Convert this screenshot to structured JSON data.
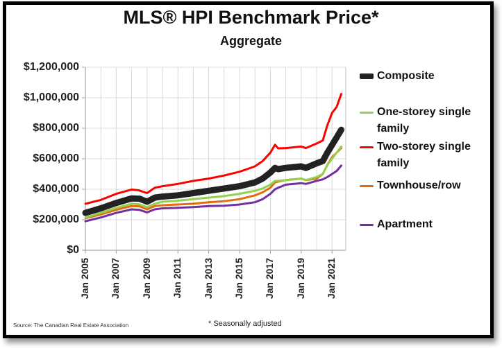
{
  "chart_data": {
    "type": "line",
    "title": "MLS® HPI Benchmark Price*",
    "subtitle": "Aggregate",
    "xlabel": "",
    "ylabel": "",
    "ylim": [
      0,
      1200000
    ],
    "xlim": [
      2005.0,
      2021.6
    ],
    "grid": true,
    "legend_position": "right",
    "y_ticks": [
      {
        "value": 0,
        "label": "$0"
      },
      {
        "value": 200000,
        "label": "$200,000"
      },
      {
        "value": 400000,
        "label": "$400,000"
      },
      {
        "value": 600000,
        "label": "$600,000"
      },
      {
        "value": 800000,
        "label": "$800,000"
      },
      {
        "value": 1000000,
        "label": "$1,000,000"
      },
      {
        "value": 1200000,
        "label": "$1,200,000"
      }
    ],
    "x_ticks": [
      {
        "value": 2005,
        "label": "Jan 2005"
      },
      {
        "value": 2007,
        "label": "Jan 2007"
      },
      {
        "value": 2009,
        "label": "Jan 2009"
      },
      {
        "value": 2011,
        "label": "Jan 2011"
      },
      {
        "value": 2013,
        "label": "Jan 2013"
      },
      {
        "value": 2015,
        "label": "Jan 2015"
      },
      {
        "value": 2017,
        "label": "Jan 2017"
      },
      {
        "value": 2019,
        "label": "Jan 2019"
      },
      {
        "value": 2021,
        "label": "Jan 2021"
      }
    ],
    "x": [
      2005.0,
      2006.0,
      2007.0,
      2008.0,
      2008.5,
      2009.0,
      2009.5,
      2010.0,
      2011.0,
      2012.0,
      2013.0,
      2014.0,
      2015.0,
      2016.0,
      2016.5,
      2017.0,
      2017.3,
      2017.5,
      2018.0,
      2019.0,
      2019.3,
      2020.0,
      2020.4,
      2020.7,
      2021.0,
      2021.3,
      2021.6
    ],
    "series": [
      {
        "name": "Composite",
        "color": "#222222",
        "width": 9,
        "values": [
          245000,
          275000,
          310000,
          340000,
          338000,
          318000,
          345000,
          352000,
          360000,
          375000,
          390000,
          405000,
          420000,
          445000,
          470000,
          510000,
          540000,
          532000,
          540000,
          550000,
          540000,
          570000,
          585000,
          640000,
          690000,
          740000,
          790000
        ]
      },
      {
        "name": "One-storey single family",
        "color": "#92d050",
        "width": 3,
        "values": [
          215000,
          245000,
          278000,
          305000,
          302000,
          282000,
          305000,
          318000,
          325000,
          335000,
          345000,
          355000,
          370000,
          390000,
          405000,
          430000,
          455000,
          455000,
          460000,
          470000,
          460000,
          480000,
          500000,
          560000,
          600000,
          640000,
          680000
        ]
      },
      {
        "name": "Two-storey single family",
        "color": "#ff0000",
        "width": 3,
        "values": [
          305000,
          330000,
          370000,
          398000,
          392000,
          375000,
          410000,
          420000,
          435000,
          455000,
          470000,
          490000,
          515000,
          550000,
          585000,
          640000,
          692000,
          668000,
          670000,
          680000,
          670000,
          700000,
          720000,
          820000,
          900000,
          940000,
          1025000
        ]
      },
      {
        "name": "Townhouse/row",
        "color": "#e46c0a",
        "width": 3,
        "values": [
          210000,
          235000,
          265000,
          290000,
          288000,
          268000,
          290000,
          295000,
          300000,
          305000,
          315000,
          322000,
          335000,
          360000,
          380000,
          410000,
          445000,
          450000,
          460000,
          470000,
          460000,
          470000,
          500000,
          560000,
          610000,
          640000,
          670000
        ]
      },
      {
        "name": "Apartment",
        "color": "#7030a0",
        "width": 3,
        "values": [
          190000,
          215000,
          245000,
          268000,
          265000,
          248000,
          268000,
          275000,
          278000,
          283000,
          290000,
          292000,
          300000,
          315000,
          335000,
          370000,
          400000,
          410000,
          430000,
          440000,
          435000,
          455000,
          465000,
          480000,
          500000,
          520000,
          555000
        ]
      }
    ]
  },
  "footer": {
    "source": "Source: The Canadian Real Estate Association",
    "note": "* Seasonally adjusted"
  }
}
